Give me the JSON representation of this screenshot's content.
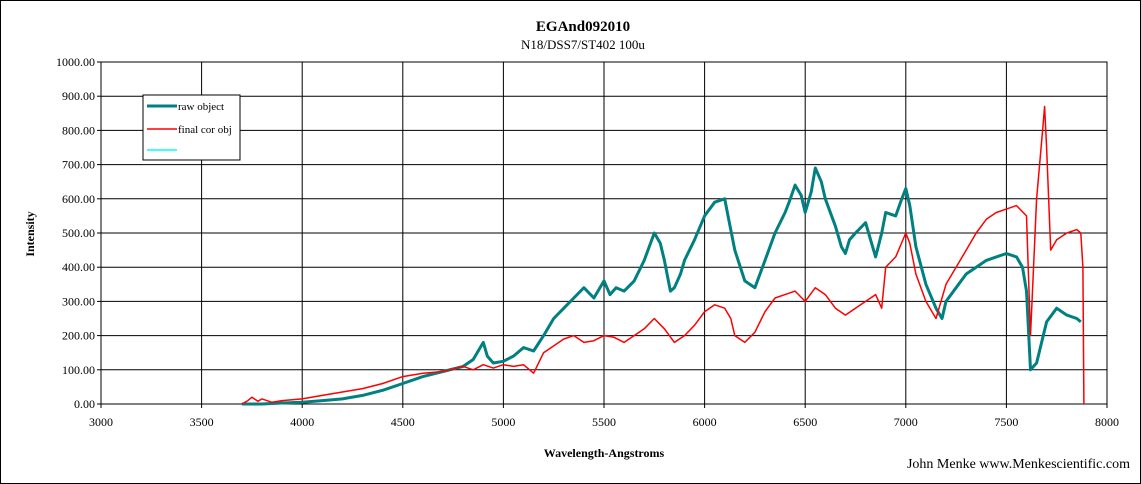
{
  "chart_data": {
    "type": "line",
    "title": "EGAnd092010",
    "subtitle": "N18/DSS7/ST402  100u",
    "xlabel": "Wavelength-Angstroms",
    "ylabel": "Intensity",
    "xlim": [
      3000,
      8000
    ],
    "ylim": [
      0,
      1000
    ],
    "x_ticks": [
      3000,
      3500,
      4000,
      4500,
      5000,
      5500,
      6000,
      6500,
      7000,
      7500,
      8000
    ],
    "y_ticks": [
      0,
      100,
      200,
      300,
      400,
      500,
      600,
      700,
      800,
      900,
      1000
    ],
    "y_tick_labels": [
      "0.00",
      "100.00",
      "200.00",
      "300.00",
      "400.00",
      "500.00",
      "600.00",
      "700.00",
      "800.00",
      "900.00",
      "1000.00"
    ],
    "grid": true,
    "legend_position": "top-left",
    "series": [
      {
        "name": "raw object",
        "color": "#008080",
        "x": [
          3700,
          3800,
          3900,
          4000,
          4100,
          4200,
          4300,
          4400,
          4500,
          4600,
          4700,
          4800,
          4850,
          4900,
          4920,
          4950,
          5000,
          5050,
          5100,
          5150,
          5200,
          5250,
          5300,
          5350,
          5400,
          5450,
          5500,
          5530,
          5560,
          5600,
          5650,
          5700,
          5750,
          5780,
          5800,
          5830,
          5850,
          5880,
          5900,
          5950,
          6000,
          6050,
          6100,
          6120,
          6150,
          6200,
          6250,
          6300,
          6350,
          6400,
          6420,
          6450,
          6480,
          6500,
          6530,
          6550,
          6580,
          6600,
          6650,
          6680,
          6700,
          6720,
          6750,
          6800,
          6830,
          6850,
          6880,
          6900,
          6950,
          6980,
          7000,
          7020,
          7050,
          7100,
          7150,
          7180,
          7200,
          7250,
          7300,
          7350,
          7400,
          7450,
          7500,
          7550,
          7580,
          7600,
          7620,
          7650,
          7700,
          7750,
          7800,
          7850,
          7870
        ],
        "y": [
          0,
          0,
          3,
          5,
          10,
          15,
          25,
          40,
          60,
          80,
          95,
          110,
          130,
          180,
          140,
          120,
          125,
          140,
          165,
          155,
          200,
          250,
          280,
          310,
          340,
          310,
          360,
          320,
          340,
          330,
          360,
          420,
          500,
          470,
          420,
          330,
          340,
          380,
          420,
          480,
          550,
          590,
          600,
          540,
          450,
          360,
          340,
          420,
          500,
          560,
          590,
          640,
          610,
          560,
          620,
          690,
          650,
          600,
          520,
          460,
          440,
          480,
          500,
          530,
          470,
          430,
          500,
          560,
          550,
          600,
          630,
          580,
          460,
          350,
          280,
          250,
          300,
          340,
          380,
          400,
          420,
          430,
          440,
          430,
          400,
          330,
          100,
          120,
          240,
          280,
          260,
          250,
          240
        ]
      },
      {
        "name": "final cor obj",
        "color": "#ff0000",
        "x": [
          3700,
          3730,
          3750,
          3780,
          3800,
          3850,
          3900,
          4000,
          4100,
          4200,
          4300,
          4400,
          4500,
          4600,
          4700,
          4800,
          4850,
          4900,
          4950,
          5000,
          5050,
          5100,
          5150,
          5200,
          5250,
          5300,
          5350,
          5400,
          5450,
          5500,
          5550,
          5600,
          5650,
          5700,
          5750,
          5800,
          5850,
          5900,
          5950,
          6000,
          6050,
          6100,
          6130,
          6150,
          6200,
          6250,
          6300,
          6350,
          6400,
          6450,
          6500,
          6550,
          6600,
          6650,
          6700,
          6750,
          6800,
          6850,
          6880,
          6900,
          6950,
          7000,
          7020,
          7050,
          7100,
          7150,
          7200,
          7250,
          7300,
          7350,
          7400,
          7450,
          7500,
          7550,
          7600,
          7620,
          7650,
          7680,
          7690,
          7700,
          7720,
          7750,
          7800,
          7850,
          7870,
          7880,
          7885
        ],
        "y": [
          0,
          10,
          20,
          8,
          15,
          5,
          10,
          15,
          25,
          35,
          45,
          60,
          80,
          90,
          95,
          110,
          100,
          115,
          105,
          115,
          110,
          115,
          90,
          150,
          170,
          190,
          200,
          180,
          185,
          200,
          195,
          180,
          200,
          220,
          250,
          220,
          180,
          200,
          230,
          270,
          290,
          280,
          250,
          200,
          180,
          210,
          270,
          310,
          320,
          330,
          300,
          340,
          320,
          280,
          260,
          280,
          300,
          320,
          280,
          400,
          430,
          500,
          470,
          380,
          300,
          250,
          350,
          400,
          450,
          500,
          540,
          560,
          570,
          580,
          550,
          200,
          600,
          800,
          870,
          750,
          450,
          480,
          500,
          510,
          500,
          400,
          0
        ]
      },
      {
        "name": "",
        "color": "#00ffff",
        "x": [],
        "y": []
      }
    ],
    "annotations": [
      "John Menke www.Menkescientific.com"
    ]
  }
}
